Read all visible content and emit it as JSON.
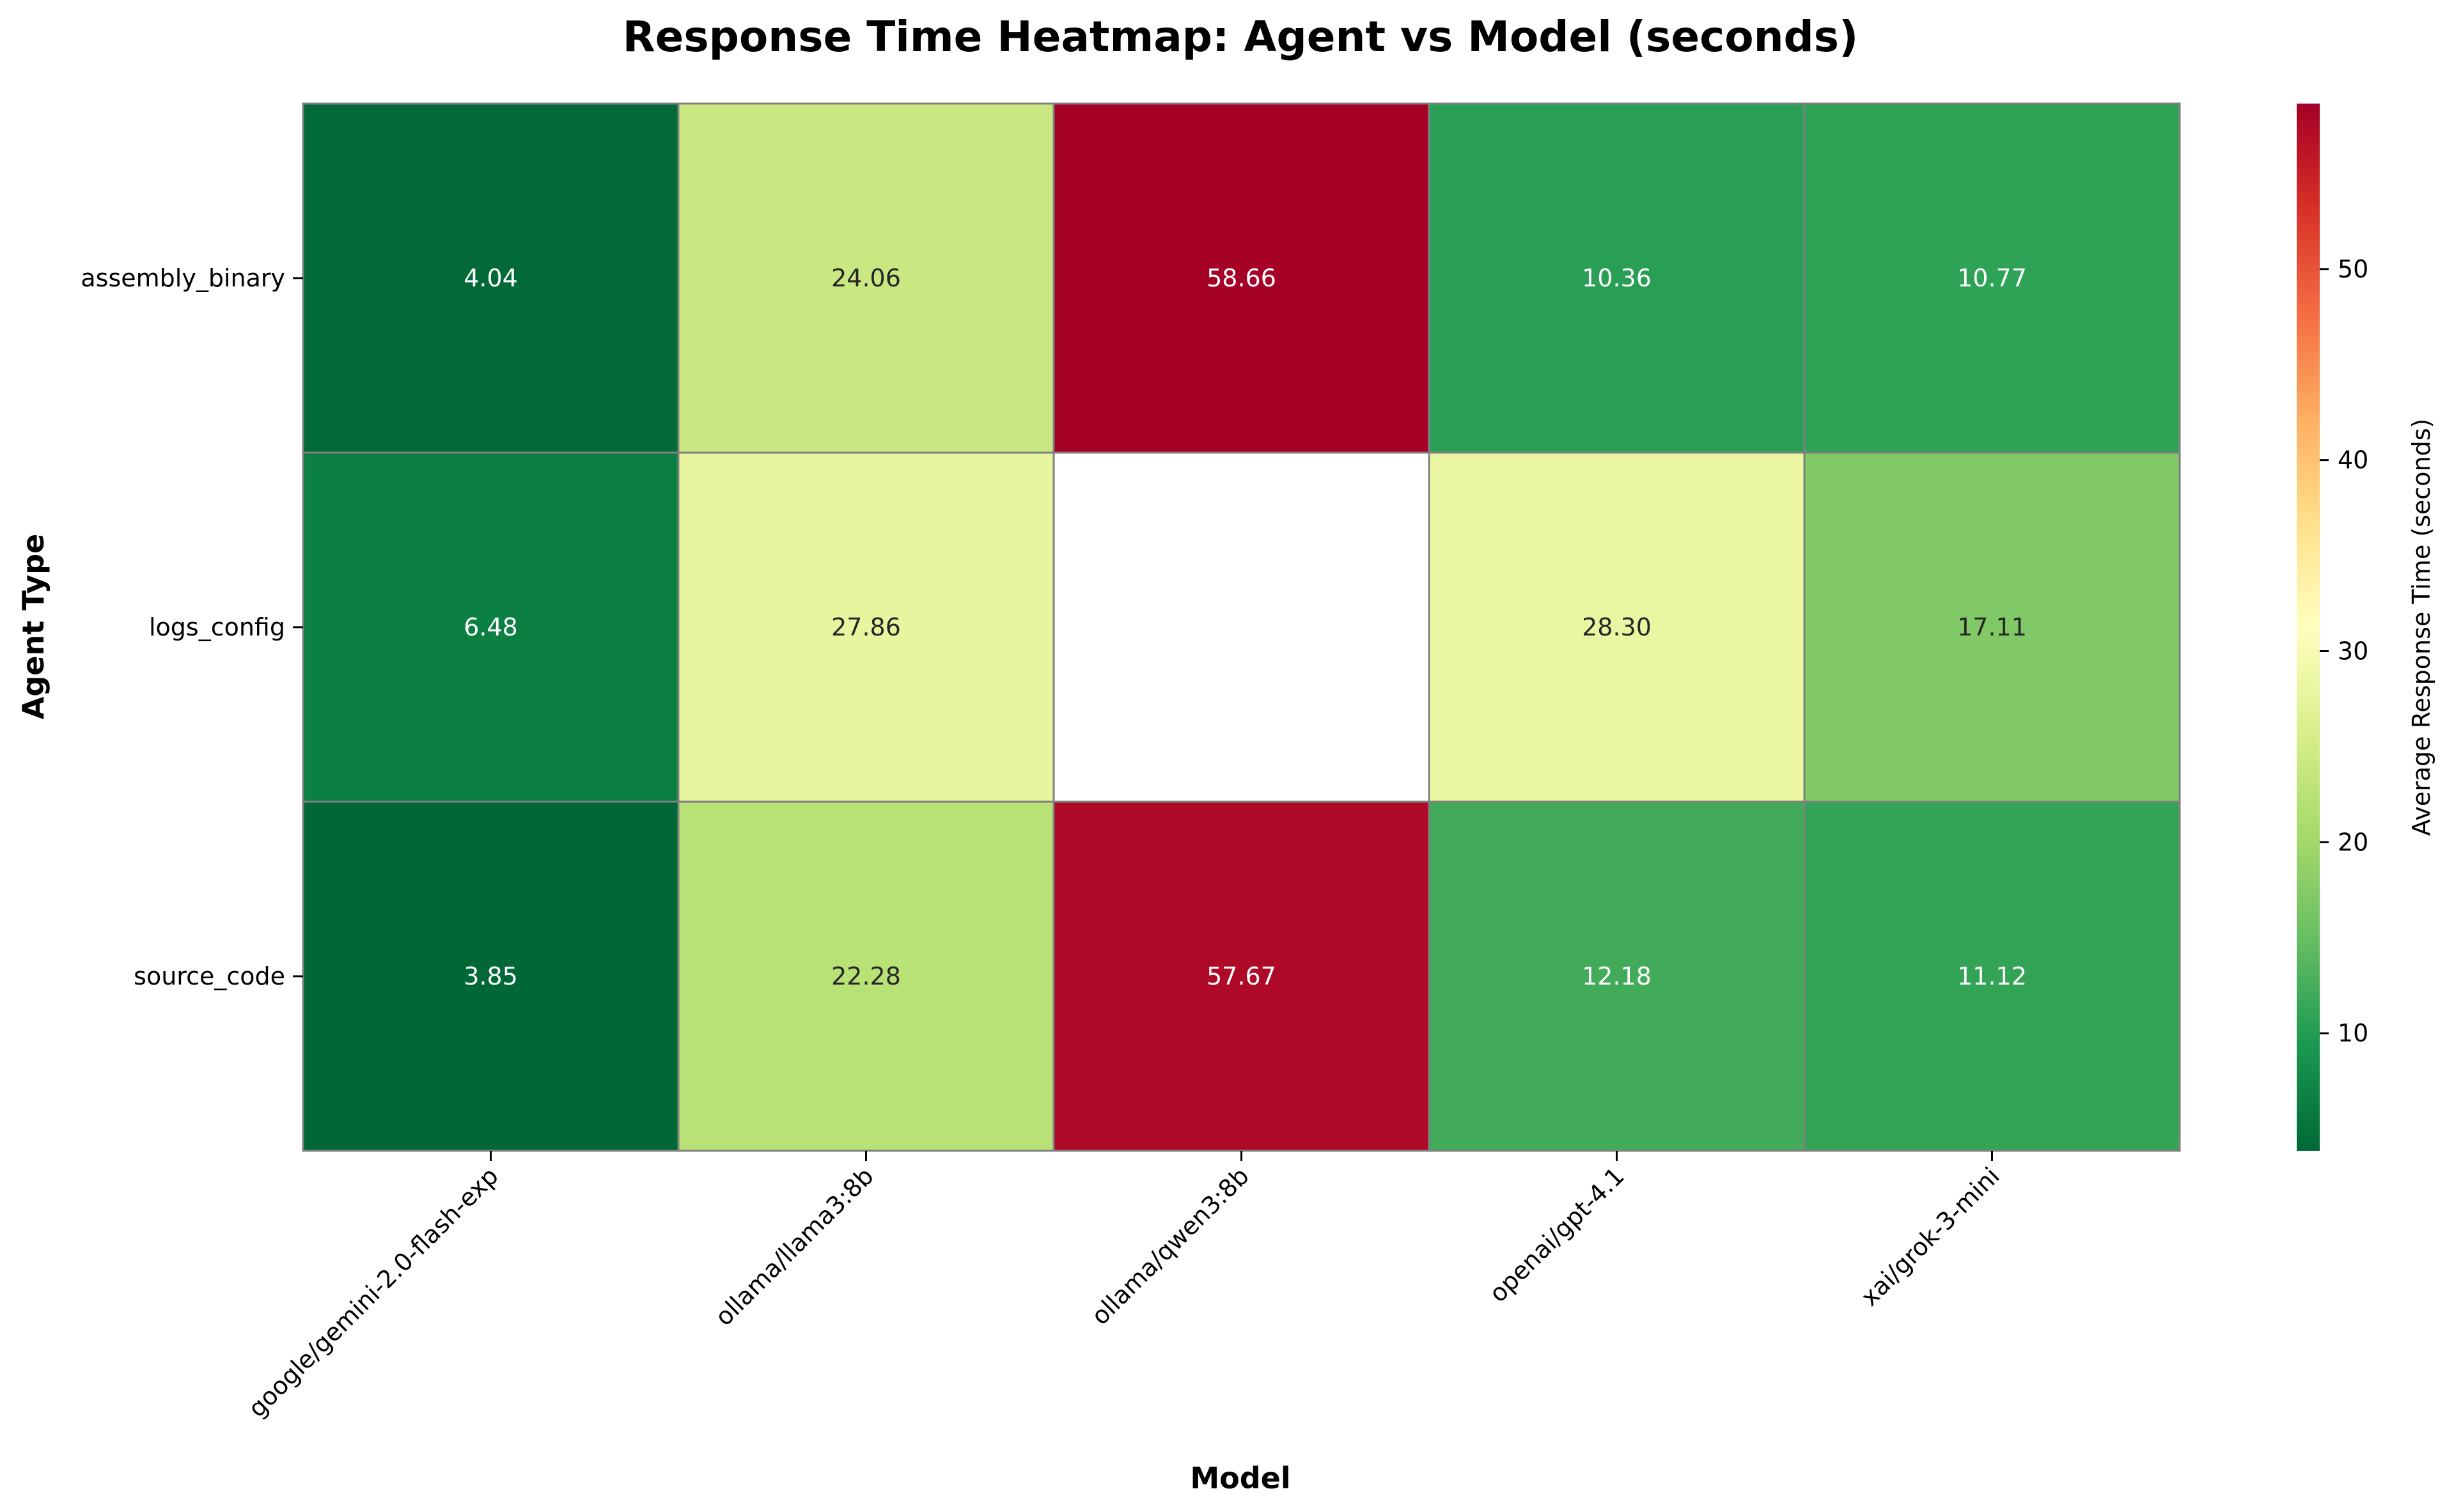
{
  "chart_data": {
    "type": "heatmap",
    "title": "Response Time Heatmap: Agent vs Model (seconds)",
    "xlabel": "Model",
    "ylabel": "Agent Type",
    "x": [
      "google/gemini-2.0-flash-exp",
      "ollama/llama3:8b",
      "ollama/qwen3:8b",
      "openai/gpt-4.1",
      "xai/grok-3-mini"
    ],
    "y": [
      "assembly_binary",
      "logs_config",
      "source_code"
    ],
    "values": [
      [
        4.04,
        24.06,
        58.66,
        10.36,
        10.77
      ],
      [
        6.48,
        27.86,
        null,
        28.3,
        17.11
      ],
      [
        3.85,
        22.28,
        57.67,
        12.18,
        11.12
      ]
    ],
    "value_labels": [
      [
        "4.04",
        "24.06",
        "58.66",
        "10.36",
        "10.77"
      ],
      [
        "6.48",
        "27.86",
        "",
        "28.30",
        "17.11"
      ],
      [
        "3.85",
        "22.28",
        "57.67",
        "12.18",
        "11.12"
      ]
    ],
    "colorbar": {
      "label": "Average Response Time (seconds)",
      "range": [
        3.85,
        58.66
      ],
      "ticks": [
        10,
        20,
        30,
        40,
        50
      ],
      "tick_labels": [
        "10",
        "20",
        "30",
        "40",
        "50"
      ],
      "colormap": "RdYlGn_r"
    },
    "grid": false,
    "legend": "colorbar-right"
  }
}
